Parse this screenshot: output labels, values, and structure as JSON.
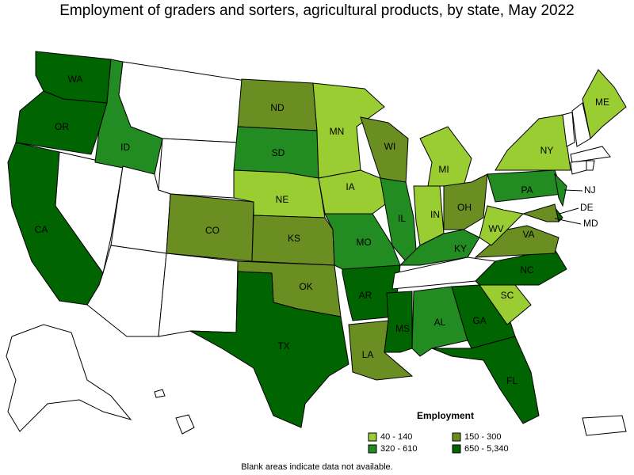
{
  "title": "Employment of graders and sorters, agricultural products, by state, May 2022",
  "states": [
    {
      "abbr": "WA",
      "color": "#006400"
    },
    {
      "abbr": "OR",
      "color": "#006400"
    },
    {
      "abbr": "CA",
      "color": "#006400"
    },
    {
      "abbr": "ID",
      "color": "#228b22"
    },
    {
      "abbr": "CO",
      "color": "#6b8e23"
    },
    {
      "abbr": "ND",
      "color": "#6b8e23"
    },
    {
      "abbr": "SD",
      "color": "#228b22"
    },
    {
      "abbr": "NE",
      "color": "#9acd32"
    },
    {
      "abbr": "KS",
      "color": "#6b8e23"
    },
    {
      "abbr": "OK",
      "color": "#6b8e23"
    },
    {
      "abbr": "TX",
      "color": "#006400"
    },
    {
      "abbr": "MN",
      "color": "#9acd32"
    },
    {
      "abbr": "IA",
      "color": "#9acd32"
    },
    {
      "abbr": "MO",
      "color": "#228b22"
    },
    {
      "abbr": "AR",
      "color": "#006400"
    },
    {
      "abbr": "LA",
      "color": "#6b8e23"
    },
    {
      "abbr": "WI",
      "color": "#6b8e23"
    },
    {
      "abbr": "IL",
      "color": "#228b22"
    },
    {
      "abbr": "MI",
      "color": "#9acd32"
    },
    {
      "abbr": "IN",
      "color": "#9acd32"
    },
    {
      "abbr": "OH",
      "color": "#6b8e23"
    },
    {
      "abbr": "KY",
      "color": "#228b22"
    },
    {
      "abbr": "MS",
      "color": "#006400"
    },
    {
      "abbr": "AL",
      "color": "#228b22"
    },
    {
      "abbr": "GA",
      "color": "#006400"
    },
    {
      "abbr": "FL",
      "color": "#006400"
    },
    {
      "abbr": "SC",
      "color": "#9acd32"
    },
    {
      "abbr": "NC",
      "color": "#006400"
    },
    {
      "abbr": "VA",
      "color": "#6b8e23"
    },
    {
      "abbr": "WV",
      "color": "#9acd32"
    },
    {
      "abbr": "PA",
      "color": "#228b22"
    },
    {
      "abbr": "NY",
      "color": "#9acd32"
    },
    {
      "abbr": "ME",
      "color": "#9acd32"
    },
    {
      "abbr": "NJ",
      "color": "#228b22"
    },
    {
      "abbr": "DE",
      "color": "#006400"
    },
    {
      "abbr": "MD",
      "color": "#6b8e23"
    }
  ],
  "legend": {
    "title": "Employment",
    "items": [
      {
        "label": "40 - 140",
        "color": "#9acd32"
      },
      {
        "label": "150 - 300",
        "color": "#6b8e23"
      },
      {
        "label": "320 - 610",
        "color": "#228b22"
      },
      {
        "label": "650 - 5,340",
        "color": "#006400"
      }
    ]
  },
  "footnote": "Blank areas indicate data not available."
}
